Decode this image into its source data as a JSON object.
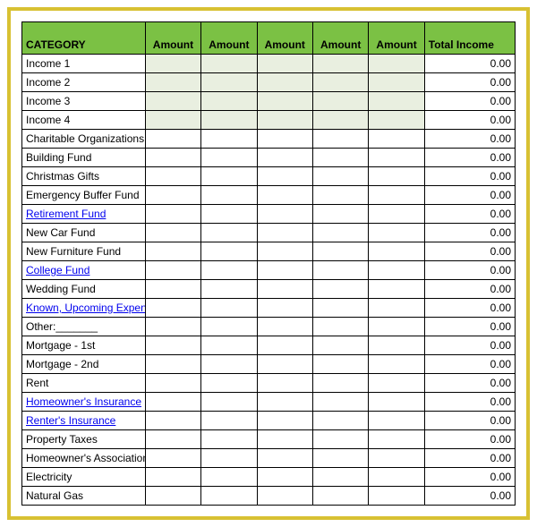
{
  "colors": {
    "frame_border": "#d8c132",
    "header_bg": "#7bc144",
    "income_row_bg": "#e9efe0",
    "link_color": "#0000ee",
    "cell_border": "#000000",
    "text": "#000000",
    "bg": "#ffffff"
  },
  "columns": [
    "CATEGORY",
    "Amount",
    "Amount",
    "Amount",
    "Amount",
    "Amount",
    "Total Income"
  ],
  "rows": [
    {
      "label": "Income 1",
      "link": false,
      "shaded": true,
      "total": "0.00"
    },
    {
      "label": "Income 2",
      "link": false,
      "shaded": true,
      "total": "0.00"
    },
    {
      "label": "Income 3",
      "link": false,
      "shaded": true,
      "total": "0.00"
    },
    {
      "label": "Income 4",
      "link": false,
      "shaded": true,
      "total": "0.00"
    },
    {
      "label": "Charitable Organizations",
      "link": false,
      "shaded": false,
      "total": "0.00"
    },
    {
      "label": "Building Fund",
      "link": false,
      "shaded": false,
      "total": "0.00"
    },
    {
      "label": "Christmas Gifts",
      "link": false,
      "shaded": false,
      "total": "0.00"
    },
    {
      "label": "Emergency Buffer Fund",
      "link": false,
      "shaded": false,
      "total": "0.00"
    },
    {
      "label": "Retirement Fund",
      "link": true,
      "shaded": false,
      "total": "0.00"
    },
    {
      "label": "New Car Fund",
      "link": false,
      "shaded": false,
      "total": "0.00"
    },
    {
      "label": "New Furniture Fund",
      "link": false,
      "shaded": false,
      "total": "0.00"
    },
    {
      "label": "College Fund",
      "link": true,
      "shaded": false,
      "total": "0.00"
    },
    {
      "label": "Wedding Fund",
      "link": false,
      "shaded": false,
      "total": "0.00"
    },
    {
      "label": "Known, Upcoming Expenses",
      "link": true,
      "shaded": false,
      "total": "0.00"
    },
    {
      "label": "Other:_______",
      "link": false,
      "shaded": false,
      "total": "0.00"
    },
    {
      "label": "Mortgage - 1st",
      "link": false,
      "shaded": false,
      "total": "0.00"
    },
    {
      "label": "Mortgage - 2nd",
      "link": false,
      "shaded": false,
      "total": "0.00"
    },
    {
      "label": "Rent",
      "link": false,
      "shaded": false,
      "total": "0.00"
    },
    {
      "label": "Homeowner's Insurance",
      "link": true,
      "shaded": false,
      "total": "0.00"
    },
    {
      "label": "Renter's Insurance",
      "link": true,
      "shaded": false,
      "total": "0.00"
    },
    {
      "label": "Property Taxes",
      "link": false,
      "shaded": false,
      "total": "0.00"
    },
    {
      "label": "Homeowner's Association Fees",
      "link": false,
      "shaded": false,
      "total": "0.00"
    },
    {
      "label": "Electricity",
      "link": false,
      "shaded": false,
      "total": "0.00"
    },
    {
      "label": "Natural Gas",
      "link": false,
      "shaded": false,
      "total": "0.00"
    }
  ]
}
